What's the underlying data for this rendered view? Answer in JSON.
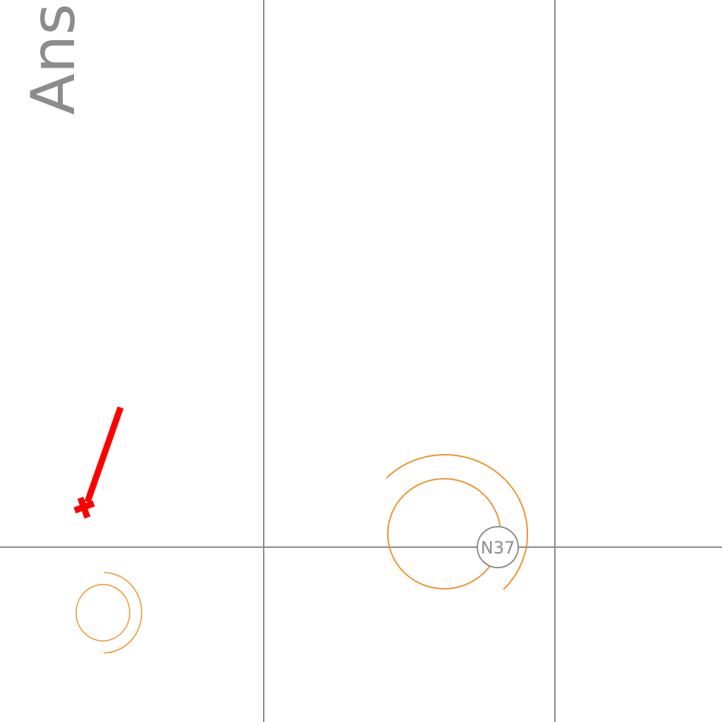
{
  "map": {
    "vertical_label": "Ansc",
    "route_badge": "N37",
    "colors": {
      "background": "#ffffff",
      "grid": "#8a8a8a",
      "rings": "#f0922e",
      "marker": "#ff0000",
      "label": "#8c8c8c"
    },
    "icons": {
      "marker": "red-pin-marker-icon"
    }
  }
}
